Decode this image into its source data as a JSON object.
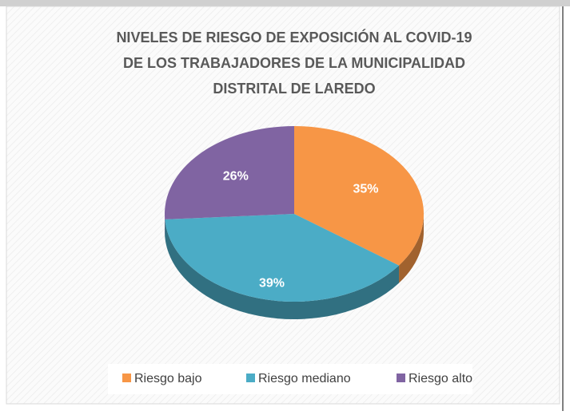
{
  "chart_data": {
    "type": "pie",
    "title": [
      "NIVELES DE RIESGO DE EXPOSICIÓN AL COVID-19",
      "DE LOS TRABAJADORES DE LA MUNICIPALIDAD",
      "DISTRITAL DE LAREDO"
    ],
    "categories": [
      "Riesgo bajo",
      "Riesgo mediano",
      "Riesgo alto"
    ],
    "values": [
      35,
      39,
      26
    ],
    "value_labels": [
      "35%",
      "39%",
      "26%"
    ],
    "colors": [
      "#f79646",
      "#4bacc6",
      "#8064a2"
    ],
    "legend": "bottom"
  }
}
